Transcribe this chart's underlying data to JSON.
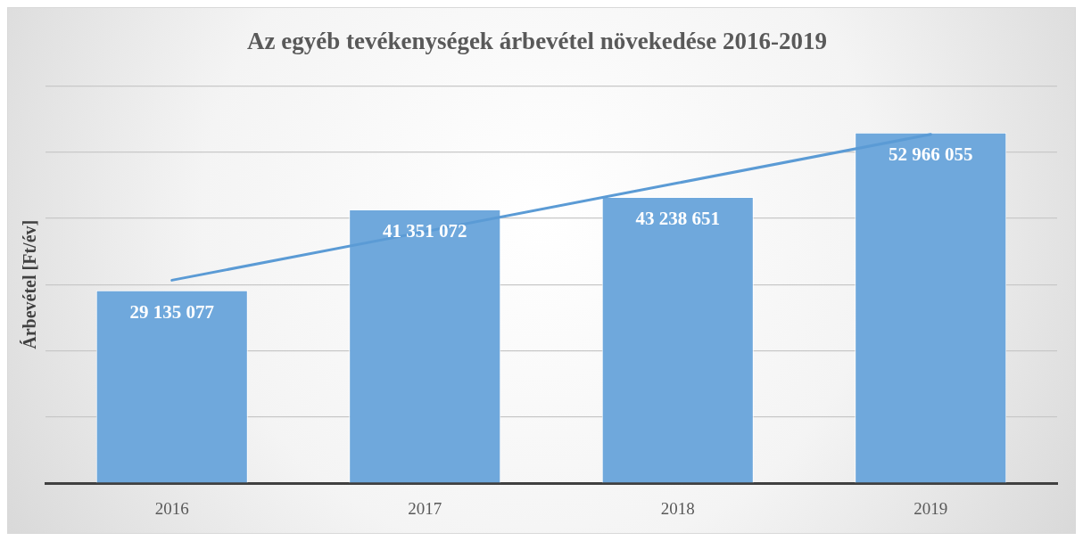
{
  "chart_data": {
    "type": "bar",
    "title": "Az egyéb tevékenységek árbevétel növekedése 2016-2019",
    "ylabel": "Árbevétel [Ft/év]",
    "categories": [
      "2016",
      "2017",
      "2018",
      "2019"
    ],
    "series": [
      {
        "color": "#6fa8dc",
        "values": [
          29135077,
          41351072,
          43238651,
          52966055
        ],
        "value_labels": [
          "29 135 077",
          "41 351 072",
          "43 238 651",
          "52 966 055"
        ]
      },
      {
        "type": "line",
        "color": "#5b9bd5",
        "values": [
          30660000,
          38000000,
          45340000,
          52680000
        ]
      }
    ],
    "ylim": [
      0,
      60000000
    ],
    "yticks": [
      {
        "value": 0,
        "label": null
      },
      {
        "value": 10000000,
        "label": null
      },
      {
        "value": 20000000,
        "label": null
      },
      {
        "value": 30000000,
        "label": null
      },
      {
        "value": 40000000,
        "label": null
      },
      {
        "value": 50000000,
        "label": null
      },
      {
        "value": 60000000,
        "label": null
      }
    ],
    "grid": "y",
    "tick_labels": "x",
    "legend": false
  }
}
